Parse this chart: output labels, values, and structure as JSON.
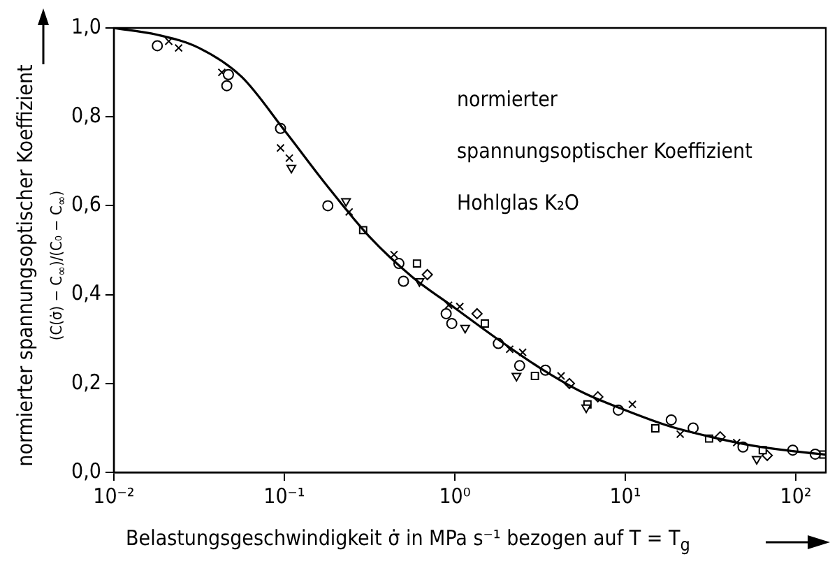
{
  "chart_data": {
    "type": "scatter",
    "xlabel": "Belastungsgeschwindigkeit σ̇ in MPa s⁻¹ bezogen auf T = T$_{g}$",
    "ylabel": "normierter spannungsoptischer Koeffizient",
    "annotations": [
      "normierter",
      "spannungsoptischer Koeffizient",
      "Hohlglas K₂O",
      "(C(σ̇) − C$_{∞}$)/(C₀ − C$_{∞}$)"
    ],
    "log": "x",
    "xlim": [
      0.01,
      150
    ],
    "ylim": [
      0,
      1
    ],
    "xticks": [
      {
        "value": 0.01,
        "label": "10⁻²"
      },
      {
        "value": 0.1,
        "label": "10⁻¹"
      },
      {
        "value": 1,
        "label": "10⁰"
      },
      {
        "value": 10,
        "label": "10¹"
      },
      {
        "value": 100,
        "label": "10²"
      }
    ],
    "yticks": [
      {
        "value": 0,
        "label": "0,0"
      },
      {
        "value": 0.2,
        "label": "0,2"
      },
      {
        "value": 0.4,
        "label": "0,4"
      },
      {
        "value": 0.6,
        "label": "0,6"
      },
      {
        "value": 0.8,
        "label": "0,8"
      },
      {
        "value": 1,
        "label": "1,0"
      }
    ],
    "grid": false,
    "legend": false,
    "series": [
      {
        "type": "line",
        "marker": "none",
        "color": "#000000",
        "x": [
          0.01,
          0.0178,
          0.0316,
          0.0562,
          0.1,
          0.178,
          0.316,
          0.562,
          1,
          1.78,
          3.16,
          5.62,
          10,
          17.8,
          31.6,
          56.2,
          100,
          150
        ],
        "values": [
          1,
          0.985,
          0.955,
          0.89,
          0.77,
          0.645,
          0.53,
          0.44,
          0.37,
          0.3,
          0.235,
          0.18,
          0.14,
          0.105,
          0.08,
          0.06,
          0.047,
          0.04
        ]
      },
      {
        "marker": "circle",
        "color": "#000000",
        "x": [
          0.018,
          0.046,
          0.18,
          0.47,
          0.89,
          1.8,
          3.4,
          9.1,
          18.6,
          130,
          0.047,
          0.095,
          0.5,
          0.96,
          2.4,
          25,
          49,
          96
        ],
        "values": [
          0.96,
          0.87,
          0.6,
          0.47,
          0.357,
          0.29,
          0.23,
          0.14,
          0.118,
          0.041,
          0.895,
          0.774,
          0.43,
          0.335,
          0.24,
          0.1,
          0.057,
          0.05
        ]
      },
      {
        "marker": "triangle",
        "color": "#000000",
        "x": [
          0.11,
          0.23,
          0.62,
          1.15,
          2.3,
          5.9,
          59
        ],
        "values": [
          0.685,
          0.61,
          0.43,
          0.325,
          0.217,
          0.146,
          0.03
        ]
      },
      {
        "marker": "square",
        "color": "#000000",
        "x": [
          0.29,
          0.6,
          1.5,
          2.95,
          6,
          15,
          31,
          64,
          145
        ],
        "values": [
          0.545,
          0.47,
          0.335,
          0.217,
          0.153,
          0.099,
          0.076,
          0.05,
          0.04
        ]
      },
      {
        "marker": "diamond",
        "color": "#000000",
        "x": [
          0.69,
          1.35,
          4.7,
          6.9,
          36,
          68
        ],
        "values": [
          0.445,
          0.357,
          0.2,
          0.17,
          0.08,
          0.038
        ]
      },
      {
        "marker": "cross",
        "color": "#000000",
        "x": [
          0.021,
          0.043,
          0.107,
          0.44,
          1.07,
          2.5,
          4.2,
          11,
          21,
          45,
          0.024,
          0.095,
          0.24,
          0.92,
          2.1
        ],
        "values": [
          0.97,
          0.9,
          0.707,
          0.49,
          0.373,
          0.27,
          0.217,
          0.153,
          0.086,
          0.067,
          0.955,
          0.73,
          0.586,
          0.376,
          0.277
        ]
      }
    ]
  }
}
